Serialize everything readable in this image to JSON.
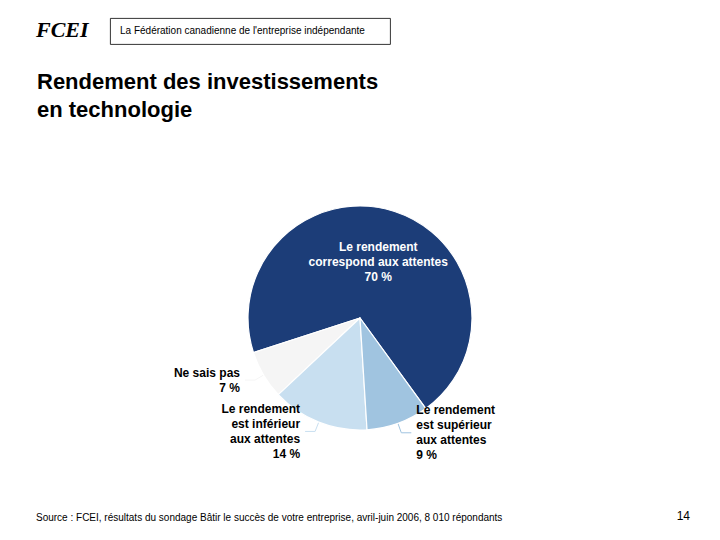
{
  "chart_data": {
    "type": "pie",
    "title": "Rendement des investissements\nen technologie",
    "categories": [
      "Le rendement\ncorrespond aux attentes",
      "Ne sais pas",
      "Le rendement\nest inférieur\naux attentes",
      "Le rendement\nest supérieur\naux attentes"
    ],
    "values": [
      70,
      7,
      14,
      9
    ],
    "value_labels": [
      "70 %",
      "7 %",
      "14 %",
      "9 %"
    ],
    "data_labels": true,
    "colors": [
      "#1c3d78",
      "#f5f5f5",
      "#c8dff0",
      "#a0c4e0"
    ],
    "legend": false,
    "annotations": [
      "FCEI",
      "La Fédération canadienne de l'entreprise indépendante",
      "Source : FCEI, résultats du sondage Bâtir le succès de votre entreprise, avril-juin 2006, 8 010 répondants",
      "14"
    ]
  }
}
